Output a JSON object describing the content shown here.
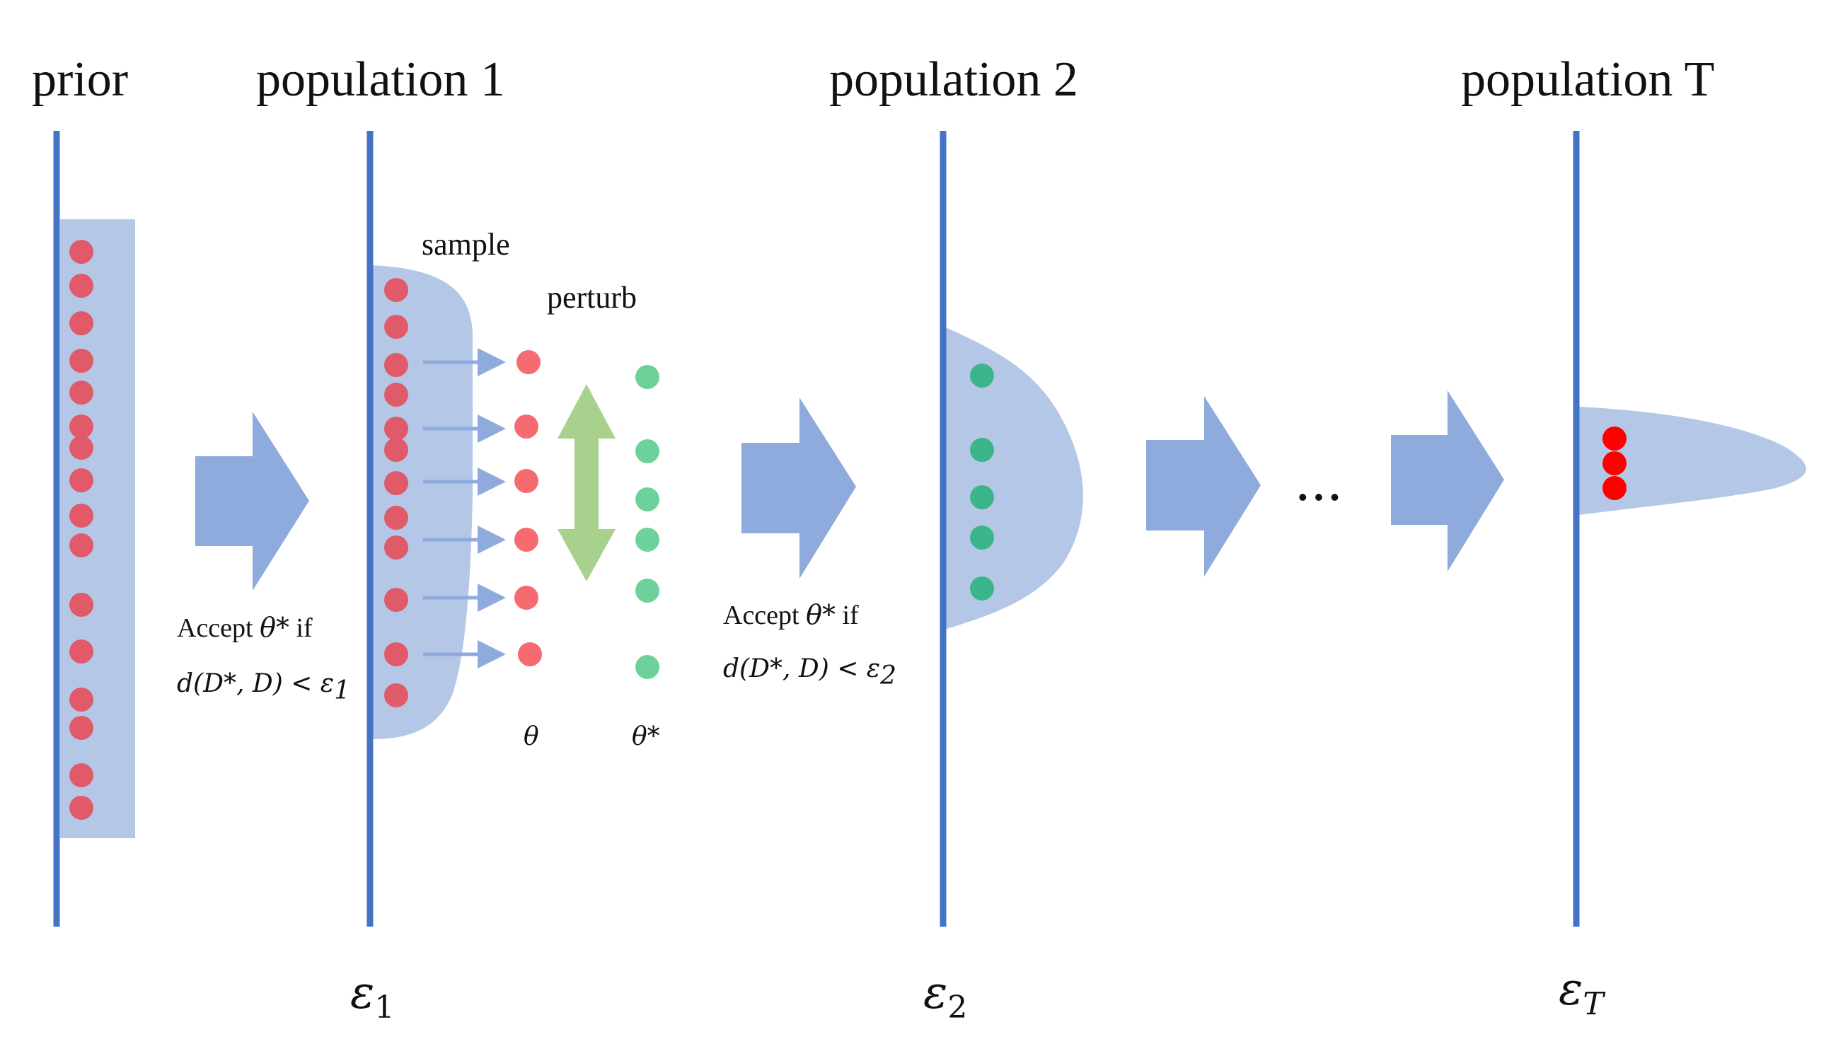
{
  "headings": {
    "prior": "prior",
    "population_1": "population 1",
    "population_2": "population 2",
    "population_t": "population T"
  },
  "steps": {
    "sample": "sample",
    "perturb": "perturb"
  },
  "symbols": {
    "theta": "θ",
    "theta_star": "θ*"
  },
  "conditions": [
    {
      "accept_prefix": "Accept ",
      "accept_var": "θ*",
      "accept_suffix": " if",
      "distance": "d(D*, D) < ε",
      "sub": "1"
    },
    {
      "accept_prefix": "Accept ",
      "accept_var": "θ*",
      "accept_suffix": " if",
      "distance": "d(D*, D) < ε",
      "sub": "2"
    }
  ],
  "thresholds": [
    {
      "symbol": "ε",
      "sub": "1"
    },
    {
      "symbol": "ε",
      "sub": "2"
    },
    {
      "symbol": "ε",
      "sub": "T"
    }
  ],
  "ellipsis": "• • •",
  "colors": {
    "axis": "#4472c4",
    "distribution": "#b4c7e7",
    "arrow": "#8faadc",
    "particle_red": "#e05a6a",
    "particle_red_bright": "#ff0000",
    "particle_green": "#6fd19a",
    "particle_green_dark": "#3cb58a",
    "perturb_arrow": "#a9d18e"
  }
}
